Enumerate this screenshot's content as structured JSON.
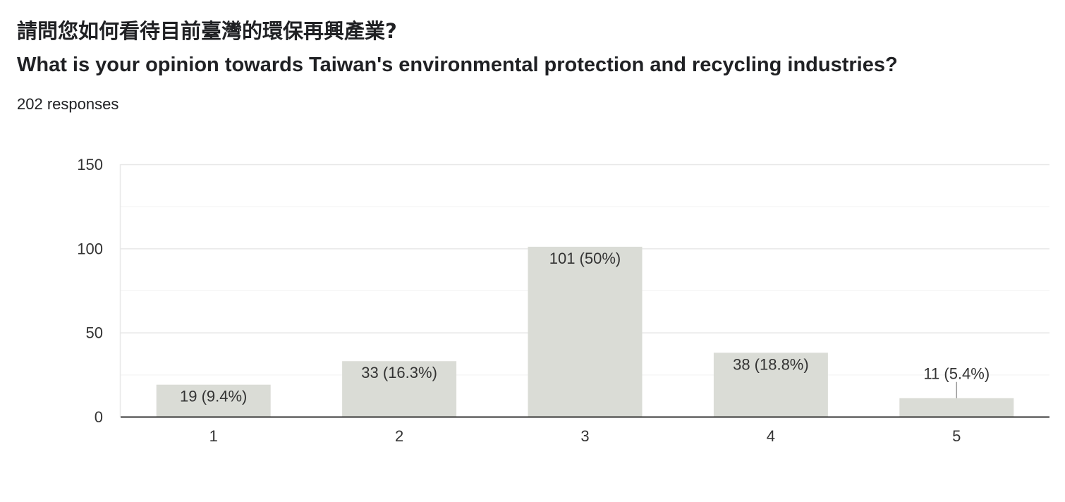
{
  "header": {
    "title_zh": "請問您如何看待目前臺灣的環保再興產業?",
    "title_en": "What is your opinion towards Taiwan's environmental protection and recycling industries?",
    "responses": "202 responses"
  },
  "colors": {
    "bar": "#dadcd6",
    "gridline": "#e8e8e8",
    "axis": "#333333"
  },
  "chart_data": {
    "type": "bar",
    "categories": [
      "1",
      "2",
      "3",
      "4",
      "5"
    ],
    "values": [
      19,
      33,
      101,
      38,
      11
    ],
    "data_labels": [
      "19 (9.4%)",
      "33 (16.3%)",
      "101 (50%)",
      "38 (18.8%)",
      "11 (5.4%)"
    ],
    "ylim": [
      0,
      150
    ],
    "yticks": [
      0,
      50,
      100,
      150
    ],
    "ytick_labels": [
      "0",
      "50",
      "100",
      "150"
    ],
    "minor_grid": true,
    "grid": true
  }
}
